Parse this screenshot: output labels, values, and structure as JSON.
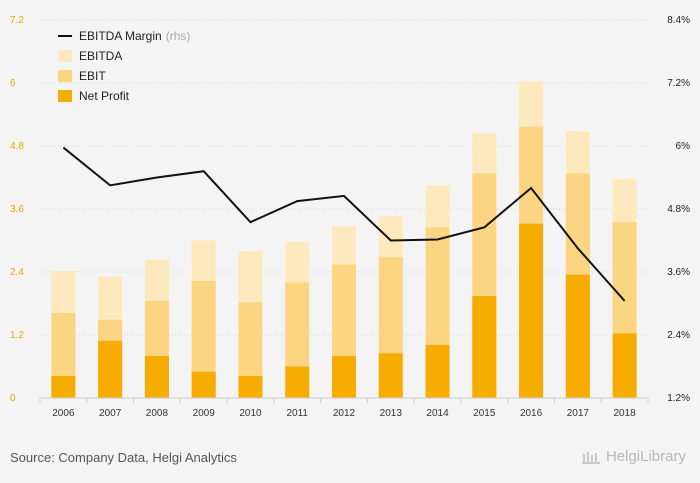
{
  "chart_data": {
    "type": "bar",
    "categories": [
      "2006",
      "2007",
      "2008",
      "2009",
      "2010",
      "2011",
      "2012",
      "2013",
      "2014",
      "2015",
      "2016",
      "2017",
      "2018"
    ],
    "series": [
      {
        "name": "EBITDA",
        "kind": "bar",
        "color": "#fde9bd",
        "values": [
          2.42,
          2.31,
          2.64,
          3.0,
          2.8,
          2.97,
          3.27,
          3.46,
          4.05,
          5.05,
          6.03,
          5.08,
          4.17
        ]
      },
      {
        "name": "EBIT",
        "kind": "bar",
        "color": "#fbd581",
        "values": [
          1.62,
          1.49,
          1.85,
          2.23,
          1.82,
          2.2,
          2.54,
          2.68,
          3.25,
          4.28,
          5.17,
          4.28,
          3.35
        ]
      },
      {
        "name": "Net Profit",
        "kind": "bar",
        "color": "#f6ac00",
        "values": [
          0.42,
          1.09,
          0.8,
          0.5,
          0.42,
          0.6,
          0.8,
          0.85,
          1.01,
          1.94,
          3.32,
          2.35,
          1.23
        ]
      },
      {
        "name": "EBITDA Margin",
        "name_suffix": "(rhs)",
        "kind": "line",
        "axis": "right",
        "color": "#111111",
        "values": [
          5.97,
          5.25,
          5.4,
          5.52,
          4.55,
          4.95,
          5.05,
          4.2,
          4.22,
          4.45,
          5.2,
          4.05,
          3.05
        ]
      }
    ],
    "y_left": {
      "min": 0,
      "max": 7.2,
      "ticks": [
        "0",
        "1.2",
        "2.4",
        "3.6",
        "4.8",
        "6",
        "7.2"
      ],
      "color": "#f0a500"
    },
    "y_right": {
      "min": 1.2,
      "max": 8.4,
      "ticks": [
        "1.2%",
        "2.4%",
        "3.6%",
        "4.8%",
        "6%",
        "7.2%",
        "8.4%"
      ]
    },
    "grid": true,
    "legend_position": "top-left"
  },
  "footer": {
    "source": "Source: Company Data, Helgi Analytics",
    "brand": "HelgiLibrary"
  }
}
